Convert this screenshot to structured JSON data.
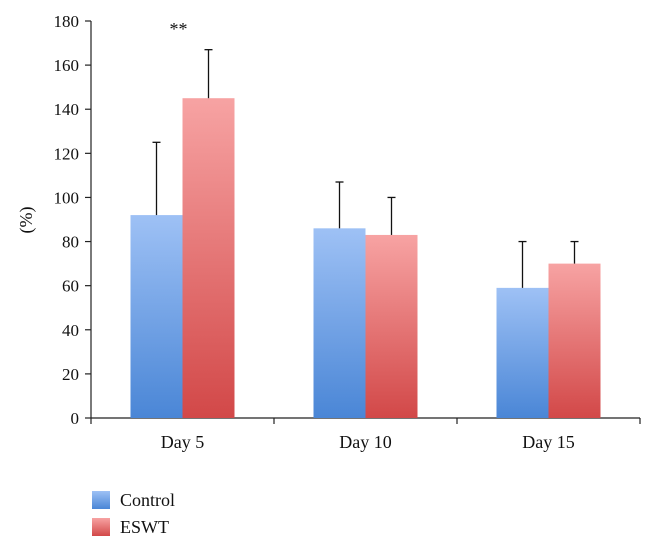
{
  "chart_data": {
    "type": "bar",
    "title": "",
    "xlabel": "",
    "ylabel": "(%)",
    "ylim": [
      0,
      180
    ],
    "yticks": [
      0,
      20,
      40,
      60,
      80,
      100,
      120,
      140,
      160,
      180
    ],
    "categories": [
      "Day 5",
      "Day 10",
      "Day 15"
    ],
    "series": [
      {
        "name": "Control",
        "values": [
          92,
          86,
          59
        ],
        "error_upper": [
          125,
          107,
          80
        ],
        "color": "#6b9ee8"
      },
      {
        "name": "ESWT",
        "values": [
          145,
          83,
          70
        ],
        "error_upper": [
          167,
          100,
          80
        ],
        "color": "#e87070"
      }
    ],
    "annotations": [
      {
        "text": "**",
        "category": "Day 5",
        "series": "ESWT"
      }
    ],
    "legend_position": "bottom-left",
    "grid": false
  }
}
